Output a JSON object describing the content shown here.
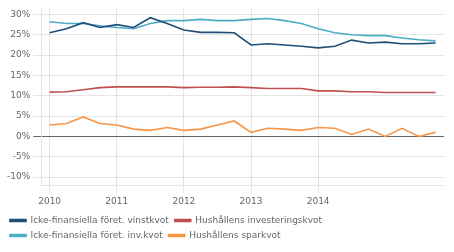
{
  "chart_data": {
    "type": "line",
    "categories": [
      "2010",
      null,
      null,
      null,
      "2011",
      null,
      null,
      null,
      "2012",
      null,
      null,
      null,
      "2013",
      null,
      null,
      null,
      "2014",
      null,
      null,
      null,
      null,
      null,
      null,
      null
    ],
    "series": [
      {
        "name": "Icke-finansiella föret. vinstkvot",
        "color": "#1f4e79",
        "values": [
          0.255,
          0.265,
          0.28,
          0.268,
          0.275,
          0.268,
          0.292,
          0.278,
          0.262,
          0.256,
          0.256,
          0.255,
          0.225,
          0.228,
          0.225,
          0.222,
          0.218,
          0.222,
          0.237,
          0.23,
          0.232,
          0.228,
          0.228,
          0.23
        ]
      },
      {
        "name": "Hushållens investeringskvot",
        "color": "#c0504d",
        "values": [
          0.109,
          0.11,
          0.115,
          0.12,
          0.122,
          0.122,
          0.122,
          0.122,
          0.12,
          0.121,
          0.121,
          0.122,
          0.12,
          0.118,
          0.118,
          0.118,
          0.112,
          0.112,
          0.11,
          0.11,
          0.108,
          0.108,
          0.108,
          0.108
        ]
      },
      {
        "name": "Icke-finansiella föret. inv.kvot",
        "color": "#4bacc6",
        "values": [
          0.282,
          0.278,
          0.278,
          0.272,
          0.268,
          0.265,
          0.278,
          0.285,
          0.285,
          0.288,
          0.285,
          0.285,
          0.288,
          0.29,
          0.285,
          0.278,
          0.265,
          0.255,
          0.25,
          0.248,
          0.248,
          0.242,
          0.238,
          0.235
        ]
      },
      {
        "name": "Hushållens sparkvot",
        "color": "#f79646",
        "values": [
          0.028,
          0.032,
          0.048,
          0.032,
          0.028,
          0.018,
          0.015,
          0.022,
          0.015,
          0.018,
          0.028,
          0.038,
          0.01,
          0.02,
          0.018,
          0.015,
          0.022,
          0.02,
          0.005,
          0.018,
          0.0,
          0.02,
          0.0,
          0.01
        ]
      }
    ],
    "ylim": [
      -0.12,
      0.315
    ],
    "yticks": [
      {
        "value": -0.1,
        "label": "-10%"
      },
      {
        "value": -0.05,
        "label": "-5%"
      },
      {
        "value": 0.0,
        "label": "0%"
      },
      {
        "value": 0.05,
        "label": "5%"
      },
      {
        "value": 0.1,
        "label": "10%"
      },
      {
        "value": 0.15,
        "label": "15%"
      },
      {
        "value": 0.2,
        "label": "20%"
      },
      {
        "value": 0.25,
        "label": "25%"
      },
      {
        "value": 0.3,
        "label": "30%"
      }
    ],
    "grid": true,
    "legend": "lower left",
    "marker": "none"
  }
}
